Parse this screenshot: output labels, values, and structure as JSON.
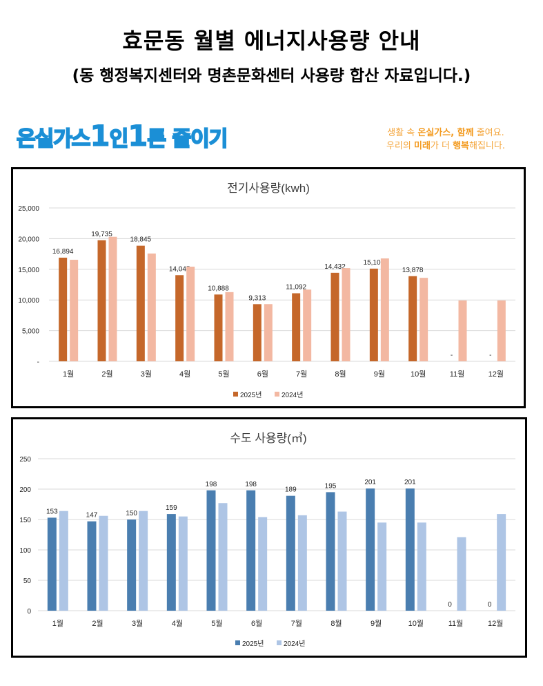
{
  "header": {
    "title": "효문동 월별 에너지사용량 안내",
    "subtitle": "(동 행정복지센터와 명촌문화센터 사용량 합산 자료입니다.)"
  },
  "banner": {
    "slogan_left_parts": [
      "온실가스",
      "1",
      "인",
      "1",
      "톤 줄이기"
    ],
    "slogan_right_line1_parts": [
      "생활 속 ",
      "온실가스, 함께",
      " 줄여요."
    ],
    "slogan_right_line2_parts": [
      "우리의 ",
      "미래",
      "가 더 ",
      "행복",
      "해집니다."
    ],
    "colors": {
      "blue": "#1b8fd6",
      "orange": "#f4a53b"
    }
  },
  "chart_data": [
    {
      "type": "bar",
      "title": "전기사용량(kwh)",
      "categories": [
        "1월",
        "2월",
        "3월",
        "4월",
        "5월",
        "6월",
        "7월",
        "8월",
        "9월",
        "10월",
        "11월",
        "12월"
      ],
      "series": [
        {
          "name": "2025년",
          "color": "#c5672a",
          "values": [
            16894,
            19735,
            18845,
            14045,
            10888,
            9313,
            11092,
            14432,
            15108,
            13878,
            0,
            0
          ],
          "labels": [
            "16,894",
            "19,735",
            "18,845",
            "14,045",
            "10,888",
            "9,313",
            "11,092",
            "14,432",
            "15,108",
            "13,878",
            "-",
            "-"
          ]
        },
        {
          "name": "2024년",
          "color": "#f3b8a2",
          "values": [
            16550,
            20300,
            17570,
            15430,
            11280,
            9320,
            11690,
            15190,
            16770,
            13610,
            9920,
            9920
          ]
        }
      ],
      "yticks": [
        "-",
        "5,000",
        "10,000",
        "15,000",
        "20,000",
        "25,000"
      ],
      "ylim": [
        0,
        25000
      ],
      "xlabel": "",
      "ylabel": "",
      "grid": true,
      "legend": "bottom"
    },
    {
      "type": "bar",
      "title": "수도 사용량(㎥)",
      "categories": [
        "1월",
        "2월",
        "3월",
        "4월",
        "5월",
        "6월",
        "7월",
        "8월",
        "9월",
        "10월",
        "11월",
        "12월"
      ],
      "series": [
        {
          "name": "2025년",
          "color": "#4a7eb0",
          "values": [
            153,
            147,
            150,
            159,
            198,
            198,
            189,
            195,
            201,
            201,
            0,
            0
          ],
          "labels": [
            "153",
            "147",
            "150",
            "159",
            "198",
            "198",
            "189",
            "195",
            "201",
            "201",
            "0",
            "0"
          ]
        },
        {
          "name": "2024년",
          "color": "#aec5e5",
          "values": [
            164,
            156,
            164,
            155,
            177,
            154,
            157,
            163,
            145,
            145,
            121,
            159
          ]
        }
      ],
      "yticks": [
        "0",
        "50",
        "100",
        "150",
        "200",
        "250"
      ],
      "ylim": [
        0,
        250
      ],
      "xlabel": "",
      "ylabel": "",
      "grid": true,
      "legend": "bottom"
    }
  ]
}
